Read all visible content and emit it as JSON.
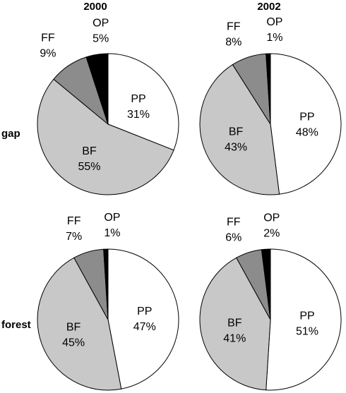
{
  "chart_data": {
    "type": "pie",
    "columns": [
      "2000",
      "2002"
    ],
    "rows": [
      "gap",
      "forest"
    ],
    "category_colors": {
      "PP": "#ffffff",
      "BF": "#c8c8c8",
      "FF": "#8c8c8c",
      "OP": "#000000"
    },
    "charts": [
      {
        "column": "2000",
        "row": "gap",
        "slices": [
          {
            "category": "PP",
            "value": 31,
            "label": "31%"
          },
          {
            "category": "BF",
            "value": 55,
            "label": "55%"
          },
          {
            "category": "FF",
            "value": 9,
            "label": "9%"
          },
          {
            "category": "OP",
            "value": 5,
            "label": "5%"
          }
        ]
      },
      {
        "column": "2002",
        "row": "gap",
        "slices": [
          {
            "category": "PP",
            "value": 48,
            "label": "48%"
          },
          {
            "category": "BF",
            "value": 43,
            "label": "43%"
          },
          {
            "category": "FF",
            "value": 8,
            "label": "8%"
          },
          {
            "category": "OP",
            "value": 1,
            "label": "1%"
          }
        ]
      },
      {
        "column": "2000",
        "row": "forest",
        "slices": [
          {
            "category": "PP",
            "value": 47,
            "label": "47%"
          },
          {
            "category": "BF",
            "value": 45,
            "label": "45%"
          },
          {
            "category": "FF",
            "value": 7,
            "label": "7%"
          },
          {
            "category": "OP",
            "value": 1,
            "label": "1%"
          }
        ]
      },
      {
        "column": "2002",
        "row": "forest",
        "slices": [
          {
            "category": "PP",
            "value": 51,
            "label": "51%"
          },
          {
            "category": "BF",
            "value": 41,
            "label": "41%"
          },
          {
            "category": "FF",
            "value": 6,
            "label": "6%"
          },
          {
            "category": "OP",
            "value": 2,
            "label": "2%"
          }
        ]
      }
    ]
  }
}
